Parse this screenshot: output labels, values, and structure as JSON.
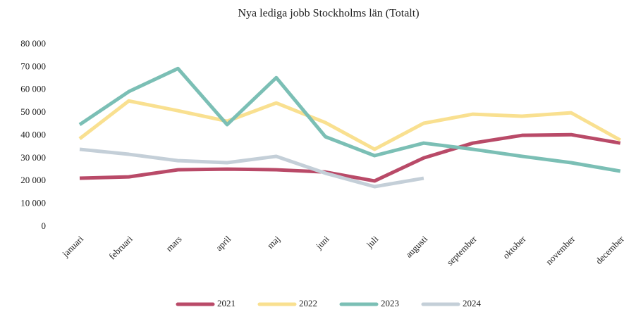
{
  "chart_data": {
    "type": "line",
    "title": "Nya lediga jobb Stockholms län (Totalt)",
    "categories": [
      "januari",
      "februari",
      "mars",
      "april",
      "maj",
      "juni",
      "juli",
      "augusti",
      "september",
      "oktober",
      "november",
      "december"
    ],
    "series": [
      {
        "name": "2021",
        "color": "#b94a68",
        "values": [
          21300,
          21900,
          25000,
          25300,
          25000,
          24000,
          20100,
          30200,
          36700,
          40100,
          40400,
          36700
        ]
      },
      {
        "name": "2022",
        "color": "#f9e090",
        "values": [
          38600,
          55200,
          50900,
          46300,
          54300,
          45700,
          34000,
          45400,
          49400,
          48500,
          50000,
          38000
        ]
      },
      {
        "name": "2023",
        "color": "#7bbfb5",
        "values": [
          44800,
          59300,
          69400,
          44800,
          65400,
          39500,
          31200,
          36700,
          34000,
          30900,
          28100,
          24400
        ]
      },
      {
        "name": "2024",
        "color": "#c4cfd8",
        "values": [
          34000,
          31800,
          29000,
          28100,
          30900,
          23500,
          17600,
          21300,
          null,
          null,
          null,
          null
        ]
      }
    ],
    "ylim": [
      0,
      80000
    ],
    "yticks": [
      0,
      {
        "value": 10000,
        "label": "10 000"
      },
      {
        "value": 20000,
        "label": "20 000"
      },
      {
        "value": 30000,
        "label": "30 000"
      },
      {
        "value": 40000,
        "label": "40 000"
      },
      {
        "value": 50000,
        "label": "50 000"
      },
      {
        "value": 60000,
        "label": "60 000"
      },
      {
        "value": 70000,
        "label": "70 000"
      },
      {
        "value": 80000,
        "label": "80 000"
      }
    ],
    "grid": false,
    "legend": "bottom"
  }
}
